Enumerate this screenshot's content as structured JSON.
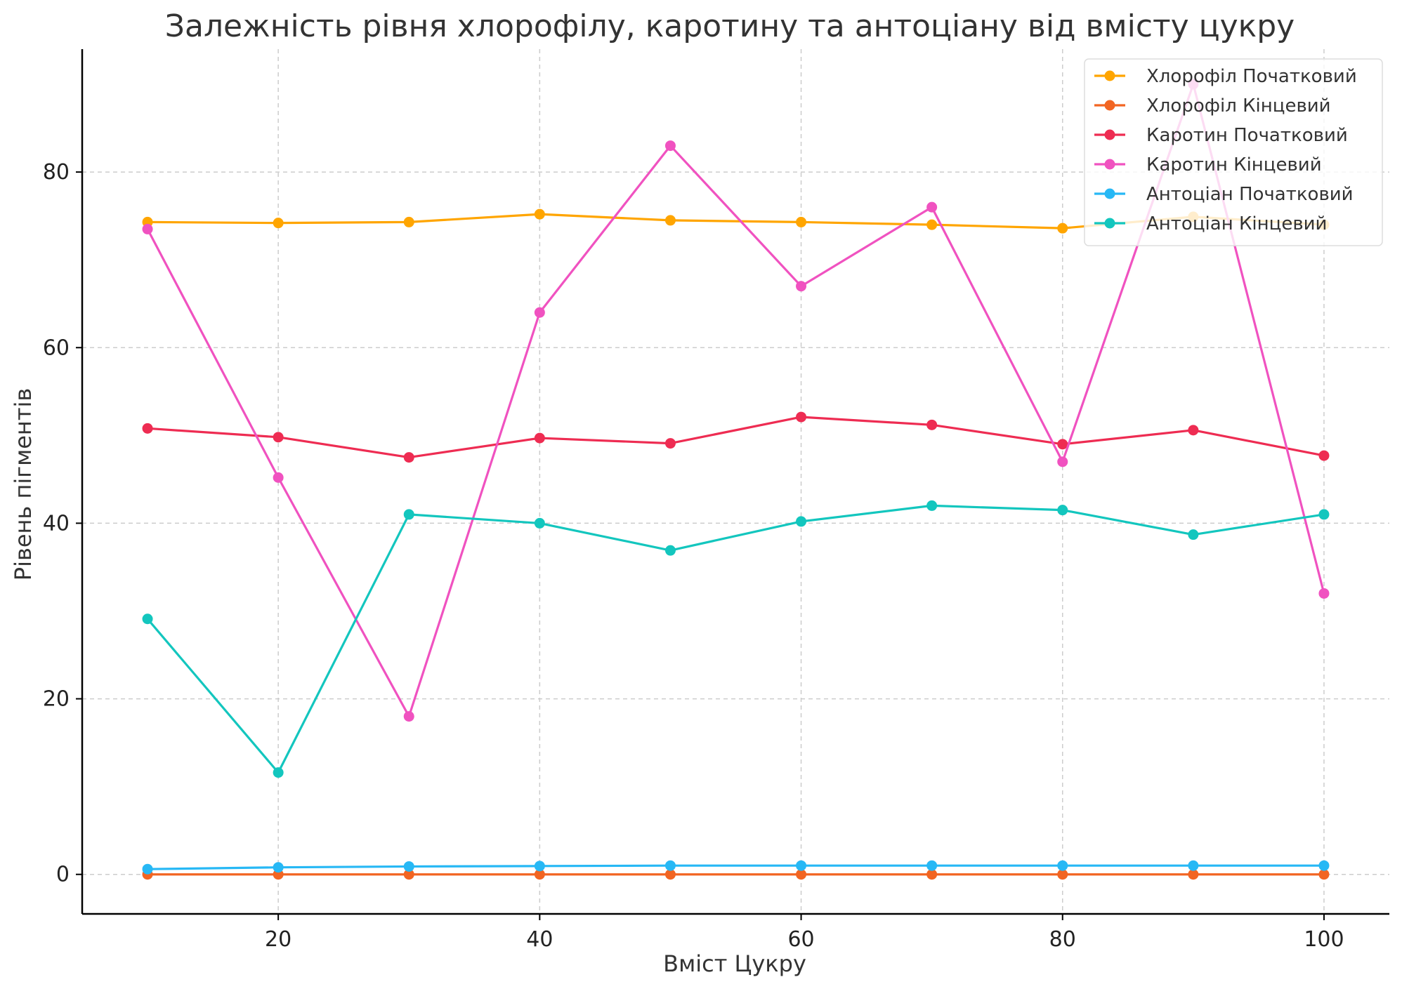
{
  "chart_data": {
    "type": "line",
    "title": "Залежність рівня хлорофілу, каротину та антоціану від вмісту цукру",
    "xlabel": "Вміст Цукру",
    "ylabel": "Рівень пігментів",
    "x": [
      10,
      20,
      30,
      40,
      50,
      60,
      70,
      80,
      90,
      100
    ],
    "xlim": [
      5,
      105
    ],
    "ylim": [
      -4.5,
      94
    ],
    "xticks": [
      20,
      40,
      60,
      80,
      100
    ],
    "yticks": [
      0,
      20,
      40,
      60,
      80
    ],
    "grid": true,
    "legend_position": "top-right",
    "series": [
      {
        "name": "Хлорофіл Початковий",
        "color": "#FFA500",
        "values": [
          74.3,
          74.2,
          74.3,
          75.2,
          74.5,
          74.3,
          74.0,
          73.6,
          74.9,
          74.0
        ]
      },
      {
        "name": "Хлорофіл Кінцевий",
        "color": "#F26522",
        "values": [
          0.0,
          0.0,
          0.0,
          0.0,
          0.0,
          0.0,
          0.0,
          0.0,
          0.0,
          0.0
        ]
      },
      {
        "name": "Каротин Початковий",
        "color": "#EE2C52",
        "values": [
          50.8,
          49.8,
          47.5,
          49.7,
          49.1,
          52.1,
          51.2,
          49.0,
          50.6,
          47.7
        ]
      },
      {
        "name": "Каротин Кінцевий",
        "color": "#F052C0",
        "values": [
          73.5,
          45.2,
          18.0,
          64.0,
          83.0,
          67.0,
          76.0,
          47.0,
          90.0,
          32.0
        ]
      },
      {
        "name": "Антоціан Початковий",
        "color": "#27B8F5",
        "values": [
          0.6,
          0.8,
          0.9,
          0.95,
          1.0,
          1.0,
          1.0,
          1.0,
          1.0,
          1.0
        ]
      },
      {
        "name": "Антоціан Кінцевий",
        "color": "#13C6BE",
        "values": [
          29.1,
          11.6,
          41.0,
          40.0,
          36.9,
          40.2,
          42.0,
          41.5,
          38.7,
          41.0
        ]
      }
    ]
  }
}
